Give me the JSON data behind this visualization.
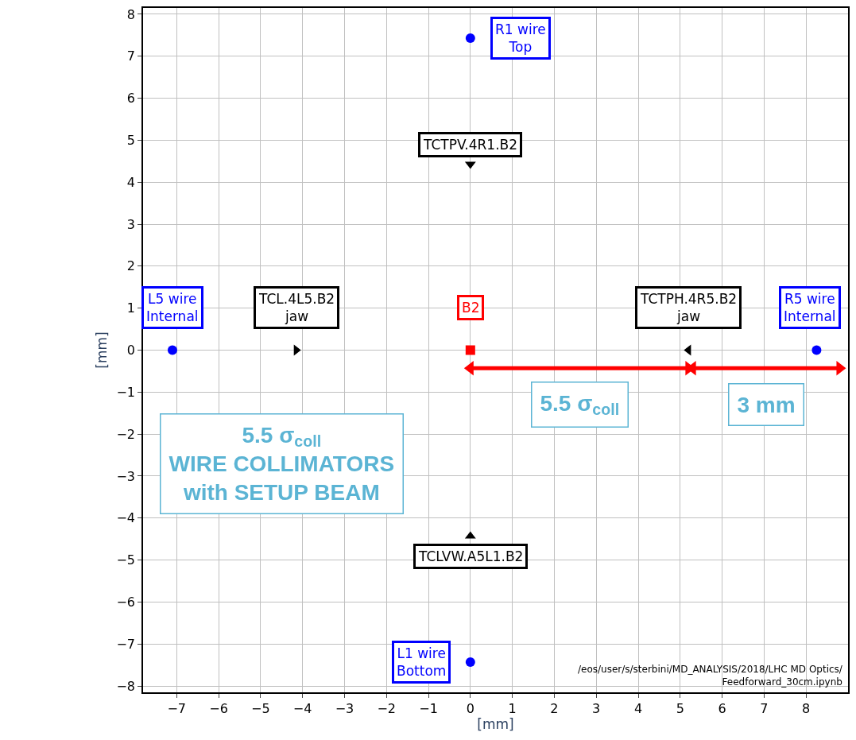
{
  "chart_data": {
    "type": "scatter",
    "xlabel": "[mm]",
    "ylabel": "[mm]",
    "xlim": [
      -7.8,
      9.0
    ],
    "ylim": [
      -8.15,
      8.15
    ],
    "xticks": [
      -7,
      -6,
      -5,
      -4,
      -3,
      -2,
      -1,
      0,
      1,
      2,
      3,
      4,
      5,
      6,
      7,
      8
    ],
    "yticks": [
      -8,
      -7,
      -6,
      -5,
      -4,
      -3,
      -2,
      -1,
      0,
      1,
      2,
      3,
      4,
      5,
      6,
      7,
      8
    ],
    "grid": true,
    "series": [
      {
        "color": "#0000ff",
        "marker": "circle",
        "x": [
          -7.1,
          8.25,
          0,
          0
        ],
        "values": [
          0,
          0,
          7.43,
          -7.43
        ]
      },
      {
        "color": "#000000",
        "marker": "triangle",
        "x": [
          -4.15,
          5.2,
          0,
          0
        ],
        "values": [
          0,
          0,
          4.43,
          -4.43
        ]
      },
      {
        "color": "#ff0000",
        "marker": "square",
        "x": [
          0
        ],
        "values": [
          0
        ]
      },
      {
        "type": "line",
        "color": "#ff0000",
        "marker": "triangle",
        "x": [
          0,
          5.2
        ],
        "values": [
          -0.43,
          -0.43
        ]
      },
      {
        "type": "line",
        "color": "#ff0000",
        "marker": "triangle",
        "x": [
          5.3,
          8.8
        ],
        "values": [
          -0.43,
          -0.43
        ]
      }
    ],
    "annotations": [
      {
        "text": "R1 wire\nTop",
        "x": 0,
        "y": 7.43
      },
      {
        "text": "TCTPV.4R1.B2",
        "x": 0,
        "y": 4.43
      },
      {
        "text": "L5 wire\nInternal",
        "x": -7.1,
        "y": 0
      },
      {
        "text": "TCL.4L5.B2\njaw",
        "x": -4.15,
        "y": 0
      },
      {
        "text": "B2",
        "x": 0,
        "y": 0
      },
      {
        "text": "TCTPH.4R5.B2\njaw",
        "x": 5.2,
        "y": 0
      },
      {
        "text": "R5 wire\nInternal",
        "x": 8.25,
        "y": 0
      },
      {
        "text": "TCLVW.A5L1.B2",
        "x": 0,
        "y": -4.43
      },
      {
        "text": "L1 wire\nBottom",
        "x": 0,
        "y": -7.43
      },
      "5.5 σ$_{coll}$",
      "3 mm",
      "5.5 σ$_{coll}$\nWIRE COLLIMATORS\nwith SETUP BEAM",
      "/eos/user/s/sterbini/MD_ANALYSIS/2018/LHC MD Optics/\nFeedforward_30cm.ipynb"
    ]
  }
}
